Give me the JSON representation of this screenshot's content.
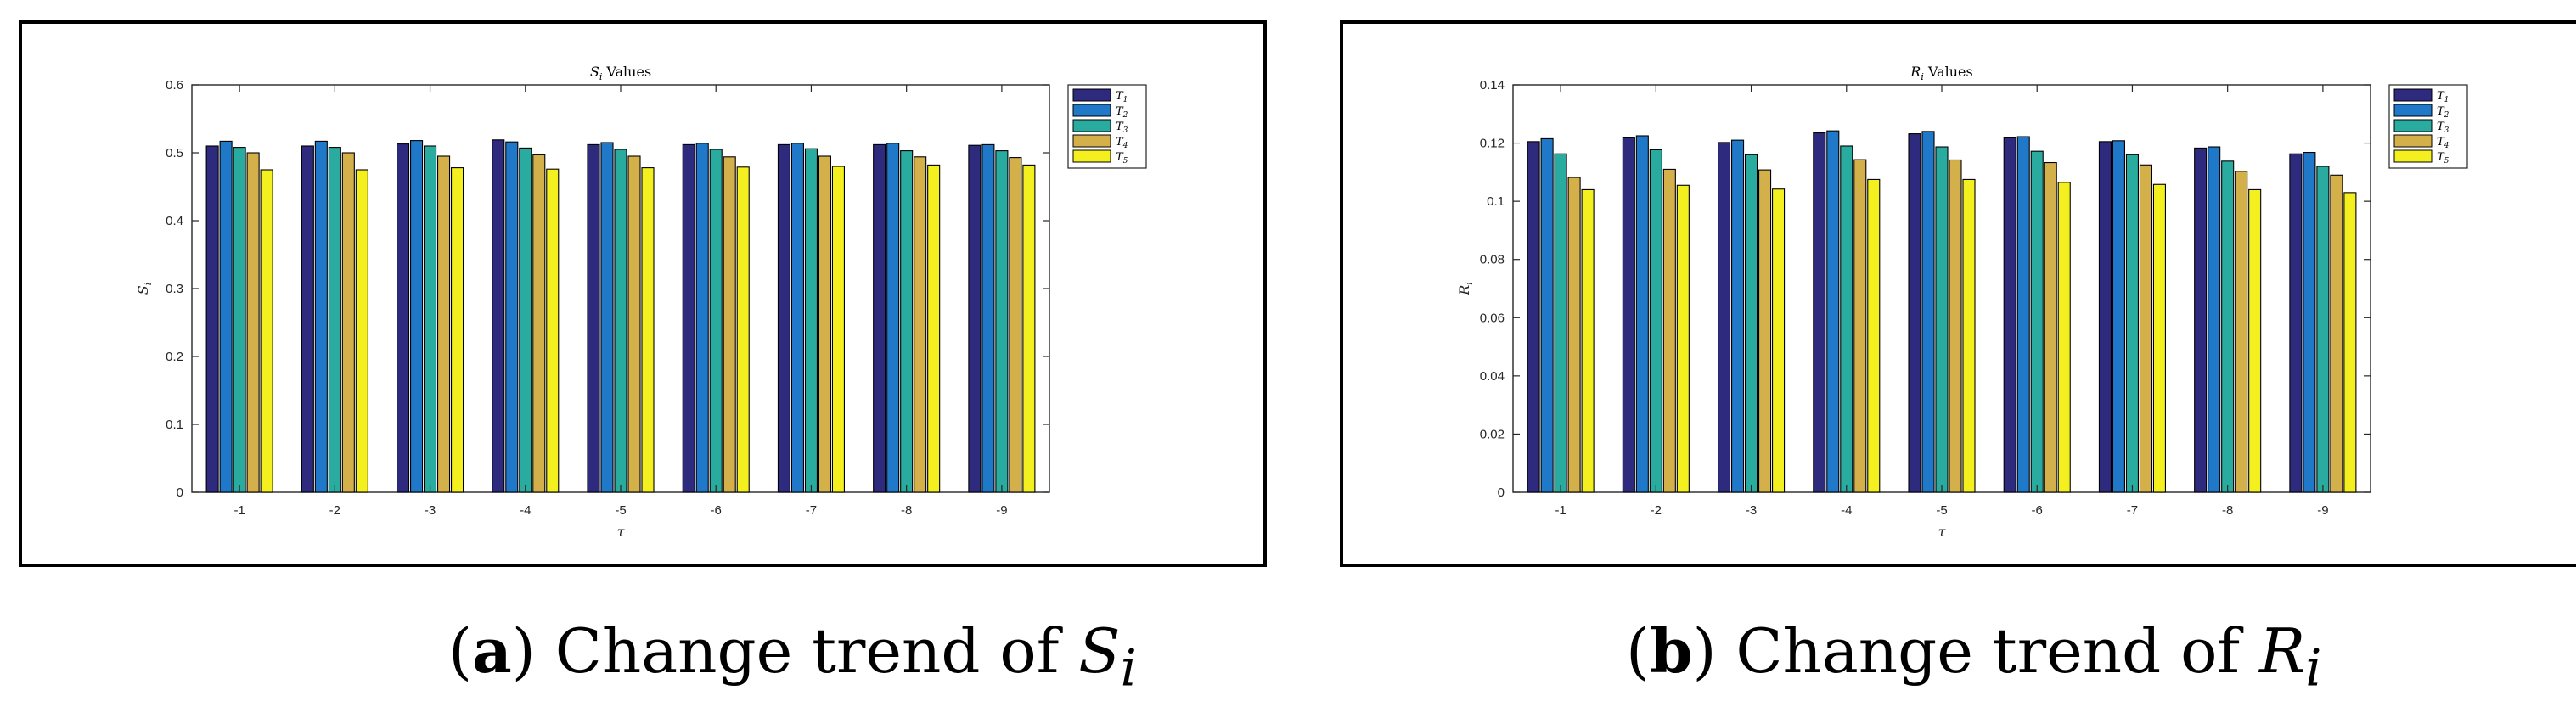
{
  "chart_data": [
    {
      "type": "bar",
      "title": "S_i Values",
      "xlabel": "τ",
      "ylabel": "S_i",
      "categories": [
        "-1",
        "-2",
        "-3",
        "-4",
        "-5",
        "-6",
        "-7",
        "-8",
        "-9"
      ],
      "ylim": [
        0,
        0.6
      ],
      "yticks": [
        "0",
        "0.1",
        "0.2",
        "0.3",
        "0.4",
        "0.5",
        "0.6"
      ],
      "legend_position": "top-right",
      "series": [
        {
          "name": "T1",
          "color": "#2e2a7e",
          "values": [
            0.51,
            0.51,
            0.513,
            0.519,
            0.512,
            0.512,
            0.512,
            0.512,
            0.511
          ]
        },
        {
          "name": "T2",
          "color": "#1f78c8",
          "values": [
            0.517,
            0.517,
            0.518,
            0.516,
            0.515,
            0.514,
            0.514,
            0.514,
            0.512
          ]
        },
        {
          "name": "T3",
          "color": "#2aab9f",
          "values": [
            0.508,
            0.508,
            0.51,
            0.507,
            0.505,
            0.505,
            0.506,
            0.503,
            0.503
          ]
        },
        {
          "name": "T4",
          "color": "#d4b04a",
          "values": [
            0.5,
            0.5,
            0.495,
            0.497,
            0.495,
            0.494,
            0.495,
            0.494,
            0.493
          ]
        },
        {
          "name": "T5",
          "color": "#f4f020",
          "values": [
            0.475,
            0.475,
            0.478,
            0.476,
            0.478,
            0.479,
            0.48,
            0.482,
            0.482
          ]
        }
      ]
    },
    {
      "type": "bar",
      "title": "R_i Values",
      "xlabel": "τ",
      "ylabel": "R_i",
      "categories": [
        "-1",
        "-2",
        "-3",
        "-4",
        "-5",
        "-6",
        "-7",
        "-8",
        "-9"
      ],
      "ylim": [
        0,
        0.14
      ],
      "yticks": [
        "0",
        "0.02",
        "0.04",
        "0.06",
        "0.08",
        "0.1",
        "0.12",
        "0.14"
      ],
      "legend_position": "top-right",
      "series": [
        {
          "name": "T1",
          "color": "#2e2a7e",
          "values": [
            0.1205,
            0.1218,
            0.1202,
            0.1235,
            0.1232,
            0.1218,
            0.1205,
            0.1183,
            0.1163
          ]
        },
        {
          "name": "T2",
          "color": "#1f78c8",
          "values": [
            0.1215,
            0.1225,
            0.121,
            0.1242,
            0.124,
            0.1222,
            0.1208,
            0.1187,
            0.1168
          ]
        },
        {
          "name": "T3",
          "color": "#2aab9f",
          "values": [
            0.1163,
            0.1177,
            0.116,
            0.119,
            0.1187,
            0.1172,
            0.116,
            0.1138,
            0.112
          ]
        },
        {
          "name": "T4",
          "color": "#d4b04a",
          "values": [
            0.1082,
            0.111,
            0.1108,
            0.1143,
            0.1142,
            0.1133,
            0.1125,
            0.1103,
            0.109
          ]
        },
        {
          "name": "T5",
          "color": "#f4f020",
          "values": [
            0.104,
            0.1055,
            0.1042,
            0.1075,
            0.1075,
            0.1065,
            0.1058,
            0.104,
            0.103
          ]
        }
      ]
    }
  ],
  "captions": {
    "a": {
      "letter": "a",
      "text": "Change trend of",
      "symbol": "S",
      "subscript": "i"
    },
    "b": {
      "letter": "b",
      "text": "Change trend of",
      "symbol": "R",
      "subscript": "i"
    }
  },
  "legend_subscripts": [
    "1",
    "2",
    "3",
    "4",
    "5"
  ]
}
